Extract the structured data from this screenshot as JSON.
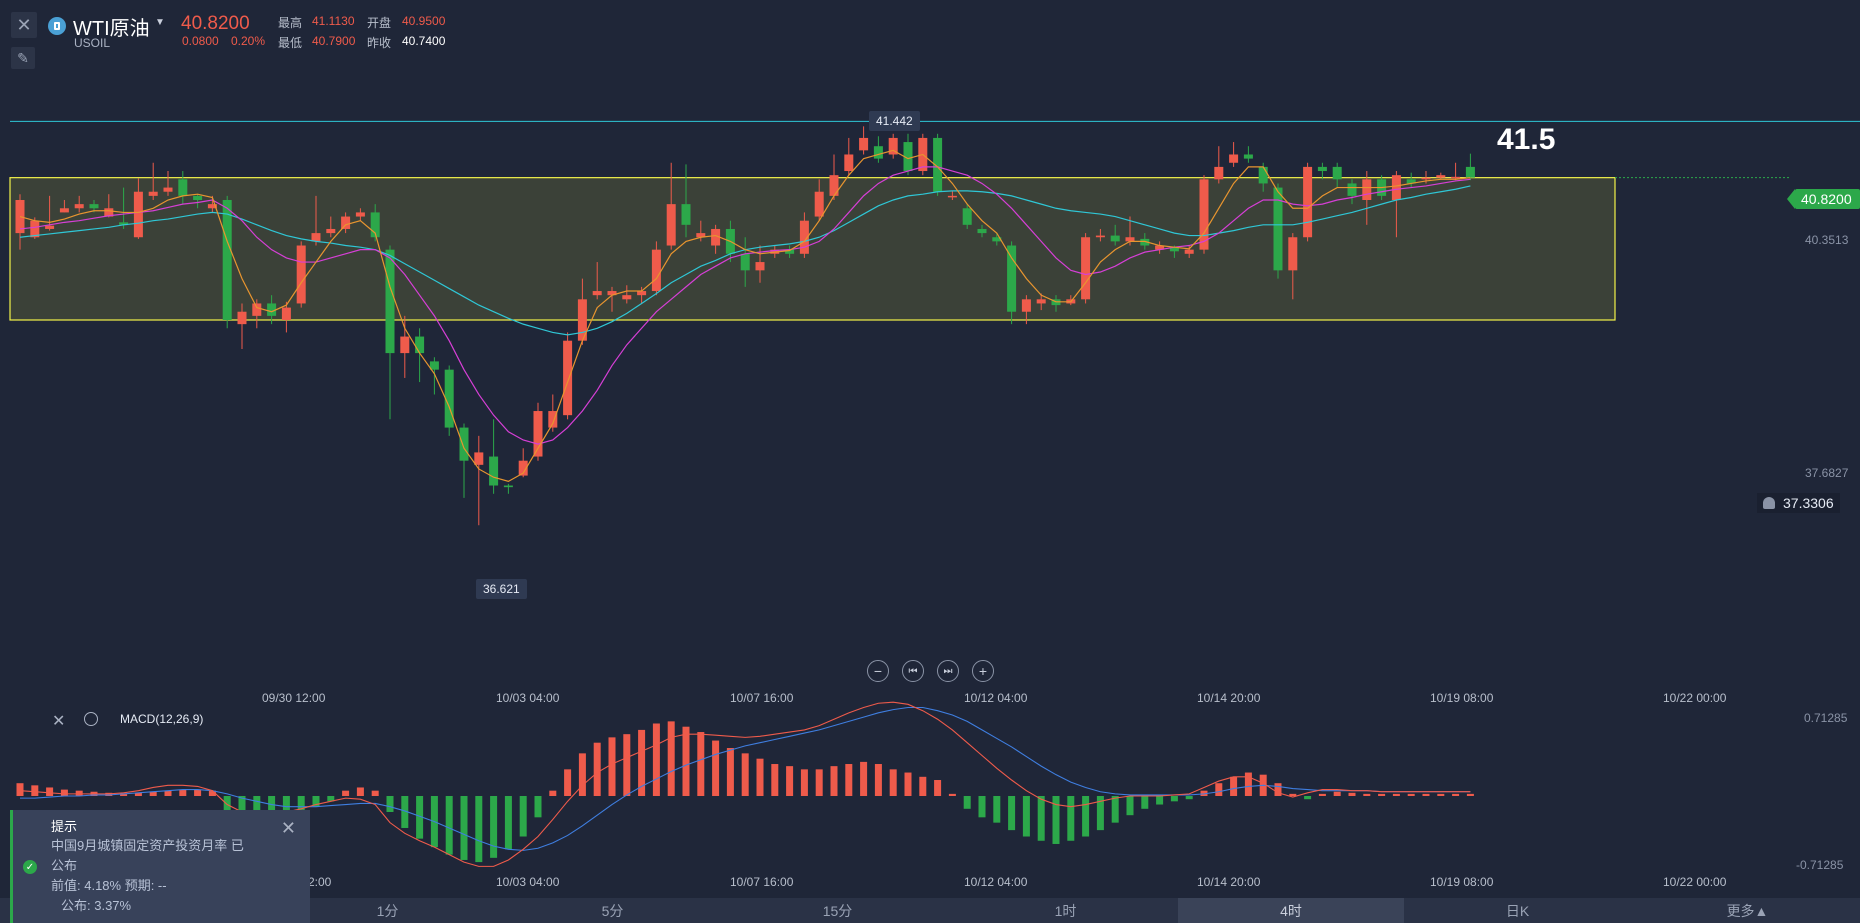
{
  "header": {
    "symbol": "WTI原油",
    "code": "USOIL",
    "price": "40.8200",
    "change": "0.0800",
    "change_pct": "0.20%",
    "high_label": "最高",
    "high": "41.1130",
    "open_label": "开盘",
    "open": "40.9500",
    "low_label": "最低",
    "low": "40.7900",
    "prev_label": "昨收",
    "prev": "40.7400"
  },
  "annotations": {
    "high_callout": "41.442",
    "low_callout": "36.621",
    "level_text": "41.5",
    "price_tag": "40.8200",
    "y_label_mid": "40.3513",
    "y_label_low": "37.6827",
    "alert_price": "37.3306"
  },
  "x_ticks": [
    "09/30 12:00",
    "10/03 04:00",
    "10/07 16:00",
    "10/12 04:00",
    "10/14 20:00",
    "10/19 08:00",
    "10/22 00:00"
  ],
  "x_ticks_bottom": [
    "2:00",
    "10/03 04:00",
    "10/07 16:00",
    "10/12 04:00",
    "10/14 20:00",
    "10/19 08:00",
    "10/22 00:00"
  ],
  "macd": {
    "label": "MACD(12,26,9)",
    "y_top": "0.71285",
    "y_bottom": "-0.71285"
  },
  "timeframes": [
    "1分",
    "5分",
    "15分",
    "1时",
    "4时",
    "日K",
    "更多▲"
  ],
  "active_timeframe": "4时",
  "notice": {
    "title": "提示",
    "line1": "中国9月城镇固定资产投资月率 已",
    "line2": "公布",
    "line3": "前值: 4.18%   预期: --",
    "line4": "公布: 3.37%"
  },
  "colors": {
    "up": "#ef5b4b",
    "down": "#2ca84a",
    "ma_fast": "#e8952f",
    "ma_mid": "#d63fd6",
    "ma_slow": "#2fc7d6",
    "box_border": "#f2f24a",
    "level_line": "#2fc7d6"
  },
  "chart_data": {
    "type": "candlestick",
    "ylim": [
      36.2,
      42.0
    ],
    "candles": [
      {
        "o": 40.15,
        "c": 40.55,
        "h": 40.62,
        "l": 39.95
      },
      {
        "o": 40.1,
        "c": 40.3,
        "h": 40.34,
        "l": 40.08
      },
      {
        "o": 40.2,
        "c": 40.24,
        "h": 40.6,
        "l": 40.18
      },
      {
        "o": 40.4,
        "c": 40.45,
        "h": 40.55,
        "l": 40.4
      },
      {
        "o": 40.45,
        "c": 40.5,
        "h": 40.6,
        "l": 40.4
      },
      {
        "o": 40.5,
        "c": 40.45,
        "h": 40.55,
        "l": 40.4
      },
      {
        "o": 40.35,
        "c": 40.45,
        "h": 40.62,
        "l": 40.34
      },
      {
        "o": 40.28,
        "c": 40.25,
        "h": 40.7,
        "l": 40.2
      },
      {
        "o": 40.1,
        "c": 40.65,
        "h": 40.81,
        "l": 40.08
      },
      {
        "o": 40.6,
        "c": 40.65,
        "h": 41.0,
        "l": 40.55
      },
      {
        "o": 40.65,
        "c": 40.7,
        "h": 40.9,
        "l": 40.6
      },
      {
        "o": 40.8,
        "c": 40.6,
        "h": 40.9,
        "l": 40.5
      },
      {
        "o": 40.6,
        "c": 40.55,
        "h": 40.62,
        "l": 40.45
      },
      {
        "o": 40.45,
        "c": 40.5,
        "h": 40.6,
        "l": 40.4
      },
      {
        "o": 40.55,
        "c": 39.1,
        "h": 40.6,
        "l": 39.0
      },
      {
        "o": 39.05,
        "c": 39.2,
        "h": 39.3,
        "l": 38.75
      },
      {
        "o": 39.15,
        "c": 39.3,
        "h": 39.35,
        "l": 39.0
      },
      {
        "o": 39.3,
        "c": 39.15,
        "h": 39.4,
        "l": 39.05
      },
      {
        "o": 39.1,
        "c": 39.25,
        "h": 39.32,
        "l": 38.95
      },
      {
        "o": 39.3,
        "c": 40.0,
        "h": 40.05,
        "l": 39.25
      },
      {
        "o": 40.05,
        "c": 40.15,
        "h": 40.6,
        "l": 40.0
      },
      {
        "o": 40.15,
        "c": 40.2,
        "h": 40.35,
        "l": 40.1
      },
      {
        "o": 40.2,
        "c": 40.35,
        "h": 40.4,
        "l": 40.15
      },
      {
        "o": 40.35,
        "c": 40.4,
        "h": 40.45,
        "l": 40.3
      },
      {
        "o": 40.4,
        "c": 40.1,
        "h": 40.5,
        "l": 40.05
      },
      {
        "o": 39.95,
        "c": 38.7,
        "h": 40.0,
        "l": 37.9
      },
      {
        "o": 38.7,
        "c": 38.9,
        "h": 39.15,
        "l": 38.4
      },
      {
        "o": 38.9,
        "c": 38.7,
        "h": 39.0,
        "l": 38.35
      },
      {
        "o": 38.6,
        "c": 38.5,
        "h": 38.65,
        "l": 38.2
      },
      {
        "o": 38.5,
        "c": 37.8,
        "h": 38.55,
        "l": 37.7
      },
      {
        "o": 37.8,
        "c": 37.4,
        "h": 37.85,
        "l": 36.95
      },
      {
        "o": 37.35,
        "c": 37.5,
        "h": 37.7,
        "l": 36.62
      },
      {
        "o": 37.45,
        "c": 37.1,
        "h": 37.9,
        "l": 37.0
      },
      {
        "o": 37.1,
        "c": 37.08,
        "h": 37.12,
        "l": 37.0
      },
      {
        "o": 37.22,
        "c": 37.4,
        "h": 37.55,
        "l": 37.2
      },
      {
        "o": 37.45,
        "c": 38.0,
        "h": 38.1,
        "l": 37.4
      },
      {
        "o": 37.8,
        "c": 38.0,
        "h": 38.2,
        "l": 37.75
      },
      {
        "o": 37.95,
        "c": 38.85,
        "h": 38.95,
        "l": 37.9
      },
      {
        "o": 38.85,
        "c": 39.35,
        "h": 39.6,
        "l": 38.8
      },
      {
        "o": 39.4,
        "c": 39.45,
        "h": 39.8,
        "l": 39.35
      },
      {
        "o": 39.4,
        "c": 39.45,
        "h": 39.5,
        "l": 39.2
      },
      {
        "o": 39.35,
        "c": 39.4,
        "h": 39.52,
        "l": 39.3
      },
      {
        "o": 39.4,
        "c": 39.45,
        "h": 39.5,
        "l": 39.3
      },
      {
        "o": 39.45,
        "c": 39.95,
        "h": 40.05,
        "l": 39.4
      },
      {
        "o": 40.0,
        "c": 40.5,
        "h": 41.0,
        "l": 39.95
      },
      {
        "o": 40.5,
        "c": 40.25,
        "h": 40.98,
        "l": 40.1
      },
      {
        "o": 40.1,
        "c": 40.15,
        "h": 40.3,
        "l": 40.05
      },
      {
        "o": 40.0,
        "c": 40.2,
        "h": 40.25,
        "l": 39.9
      },
      {
        "o": 40.2,
        "c": 39.9,
        "h": 40.3,
        "l": 39.8
      },
      {
        "o": 39.9,
        "c": 39.7,
        "h": 40.1,
        "l": 39.5
      },
      {
        "o": 39.7,
        "c": 39.8,
        "h": 40.0,
        "l": 39.55
      },
      {
        "o": 39.9,
        "c": 39.95,
        "h": 40.0,
        "l": 39.85
      },
      {
        "o": 39.95,
        "c": 39.9,
        "h": 40.0,
        "l": 39.85
      },
      {
        "o": 39.9,
        "c": 40.3,
        "h": 40.4,
        "l": 39.85
      },
      {
        "o": 40.35,
        "c": 40.65,
        "h": 40.8,
        "l": 40.3
      },
      {
        "o": 40.6,
        "c": 40.85,
        "h": 41.1,
        "l": 40.55
      },
      {
        "o": 40.9,
        "c": 41.1,
        "h": 41.3,
        "l": 40.85
      },
      {
        "o": 41.15,
        "c": 41.3,
        "h": 41.44,
        "l": 41.1
      },
      {
        "o": 41.2,
        "c": 41.05,
        "h": 41.32,
        "l": 41.0
      },
      {
        "o": 41.1,
        "c": 41.3,
        "h": 41.35,
        "l": 41.05
      },
      {
        "o": 41.25,
        "c": 40.9,
        "h": 41.35,
        "l": 40.85
      },
      {
        "o": 40.9,
        "c": 41.3,
        "h": 41.35,
        "l": 40.85
      },
      {
        "o": 41.3,
        "c": 40.65,
        "h": 41.35,
        "l": 40.6
      },
      {
        "o": 40.6,
        "c": 40.6,
        "h": 40.66,
        "l": 40.55
      },
      {
        "o": 40.45,
        "c": 40.25,
        "h": 40.5,
        "l": 40.2
      },
      {
        "o": 40.2,
        "c": 40.15,
        "h": 40.25,
        "l": 40.1
      },
      {
        "o": 40.1,
        "c": 40.05,
        "h": 40.15,
        "l": 40.0
      },
      {
        "o": 40.0,
        "c": 39.2,
        "h": 40.05,
        "l": 39.05
      },
      {
        "o": 39.2,
        "c": 39.35,
        "h": 39.4,
        "l": 39.05
      },
      {
        "o": 39.3,
        "c": 39.35,
        "h": 39.42,
        "l": 39.22
      },
      {
        "o": 39.35,
        "c": 39.28,
        "h": 39.4,
        "l": 39.2
      },
      {
        "o": 39.3,
        "c": 39.35,
        "h": 39.4,
        "l": 39.28
      },
      {
        "o": 39.35,
        "c": 40.1,
        "h": 40.15,
        "l": 39.3
      },
      {
        "o": 40.1,
        "c": 40.12,
        "h": 40.2,
        "l": 40.05
      },
      {
        "o": 40.12,
        "c": 40.05,
        "h": 40.25,
        "l": 40.0
      },
      {
        "o": 40.05,
        "c": 40.1,
        "h": 40.35,
        "l": 40.0
      },
      {
        "o": 40.08,
        "c": 40.0,
        "h": 40.15,
        "l": 39.95
      },
      {
        "o": 39.95,
        "c": 40.0,
        "h": 40.05,
        "l": 39.9
      },
      {
        "o": 39.98,
        "c": 39.93,
        "h": 40.0,
        "l": 39.85
      },
      {
        "o": 39.9,
        "c": 39.95,
        "h": 40.0,
        "l": 39.85
      },
      {
        "o": 39.95,
        "c": 40.8,
        "h": 40.85,
        "l": 39.9
      },
      {
        "o": 40.8,
        "c": 40.95,
        "h": 41.2,
        "l": 40.75
      },
      {
        "o": 41.0,
        "c": 41.1,
        "h": 41.25,
        "l": 40.95
      },
      {
        "o": 41.1,
        "c": 41.05,
        "h": 41.2,
        "l": 41.0
      },
      {
        "o": 40.95,
        "c": 40.75,
        "h": 41.0,
        "l": 40.65
      },
      {
        "o": 40.7,
        "c": 39.7,
        "h": 40.75,
        "l": 39.6
      },
      {
        "o": 39.7,
        "c": 40.1,
        "h": 40.15,
        "l": 39.35
      },
      {
        "o": 40.1,
        "c": 40.95,
        "h": 41.0,
        "l": 40.05
      },
      {
        "o": 40.95,
        "c": 40.9,
        "h": 41.0,
        "l": 40.8
      },
      {
        "o": 40.95,
        "c": 40.8,
        "h": 41.0,
        "l": 40.7
      },
      {
        "o": 40.75,
        "c": 40.6,
        "h": 40.8,
        "l": 40.5
      },
      {
        "o": 40.55,
        "c": 40.8,
        "h": 40.9,
        "l": 40.25
      },
      {
        "o": 40.8,
        "c": 40.6,
        "h": 40.85,
        "l": 40.55
      },
      {
        "o": 40.55,
        "c": 40.85,
        "h": 40.9,
        "l": 40.1
      },
      {
        "o": 40.8,
        "c": 40.75,
        "h": 40.88,
        "l": 40.7
      },
      {
        "o": 40.8,
        "c": 40.82,
        "h": 40.9,
        "l": 40.75
      },
      {
        "o": 40.82,
        "c": 40.85,
        "h": 40.88,
        "l": 40.8
      },
      {
        "o": 40.82,
        "c": 40.83,
        "h": 41.0,
        "l": 40.79
      },
      {
        "o": 40.95,
        "c": 40.82,
        "h": 41.11,
        "l": 40.79
      }
    ],
    "ma_fast": [
      40.35,
      40.3,
      40.28,
      40.32,
      40.38,
      40.42,
      40.42,
      40.4,
      40.4,
      40.45,
      40.55,
      40.6,
      40.62,
      40.58,
      40.05,
      39.6,
      39.25,
      39.2,
      39.28,
      39.55,
      39.8,
      40.05,
      40.25,
      40.3,
      40.15,
      39.5,
      39.0,
      38.7,
      38.45,
      38.05,
      37.55,
      37.3,
      37.2,
      37.15,
      37.25,
      37.55,
      37.85,
      38.35,
      38.85,
      39.25,
      39.4,
      39.45,
      39.45,
      39.6,
      39.9,
      40.05,
      40.1,
      40.12,
      40.05,
      39.95,
      39.9,
      39.92,
      39.94,
      40.05,
      40.3,
      40.6,
      40.85,
      41.05,
      41.1,
      41.15,
      41.05,
      41.1,
      40.95,
      40.75,
      40.5,
      40.3,
      40.15,
      39.85,
      39.6,
      39.4,
      39.32,
      39.32,
      39.55,
      39.8,
      39.95,
      40.05,
      40.05,
      40.0,
      39.98,
      39.96,
      40.15,
      40.45,
      40.75,
      40.95,
      40.95,
      40.65,
      40.45,
      40.45,
      40.6,
      40.7,
      40.7,
      40.7,
      40.7,
      40.72,
      40.75,
      40.78,
      40.8,
      40.8,
      40.82
    ],
    "ma_mid": [
      40.2,
      40.22,
      40.25,
      40.28,
      40.3,
      40.33,
      40.36,
      40.38,
      40.4,
      40.42,
      40.46,
      40.5,
      40.52,
      40.55,
      40.45,
      40.3,
      40.1,
      39.95,
      39.85,
      39.8,
      39.8,
      39.85,
      39.9,
      39.95,
      39.95,
      39.85,
      39.65,
      39.4,
      39.15,
      38.85,
      38.5,
      38.2,
      37.95,
      37.75,
      37.65,
      37.6,
      37.65,
      37.8,
      38.0,
      38.25,
      38.55,
      38.8,
      39.0,
      39.2,
      39.35,
      39.5,
      39.65,
      39.75,
      39.85,
      39.9,
      39.92,
      39.94,
      39.95,
      39.98,
      40.05,
      40.2,
      40.4,
      40.6,
      40.75,
      40.85,
      40.9,
      40.95,
      40.95,
      40.9,
      40.85,
      40.75,
      40.62,
      40.45,
      40.25,
      40.05,
      39.85,
      39.7,
      39.65,
      39.68,
      39.75,
      39.85,
      39.92,
      39.95,
      39.98,
      40.0,
      40.05,
      40.15,
      40.3,
      40.45,
      40.55,
      40.55,
      40.5,
      40.48,
      40.5,
      40.55,
      40.58,
      40.62,
      40.65,
      40.68,
      40.7,
      40.72,
      40.75,
      40.78,
      40.8
    ],
    "ma_slow": [
      40.1,
      40.12,
      40.14,
      40.16,
      40.18,
      40.2,
      40.22,
      40.25,
      40.27,
      40.3,
      40.32,
      40.35,
      40.38,
      40.4,
      40.38,
      40.32,
      40.25,
      40.18,
      40.12,
      40.08,
      40.05,
      40.03,
      40.0,
      39.98,
      39.95,
      39.88,
      39.78,
      39.68,
      39.58,
      39.48,
      39.38,
      39.28,
      39.2,
      39.12,
      39.05,
      39.0,
      38.95,
      38.92,
      38.95,
      39.0,
      39.08,
      39.18,
      39.3,
      39.42,
      39.55,
      39.65,
      39.75,
      39.82,
      39.9,
      39.95,
      39.98,
      40.0,
      40.02,
      40.05,
      40.1,
      40.18,
      40.28,
      40.38,
      40.48,
      40.55,
      40.6,
      40.62,
      40.65,
      40.66,
      40.66,
      40.65,
      40.63,
      40.6,
      40.55,
      40.5,
      40.45,
      40.42,
      40.4,
      40.38,
      40.35,
      40.3,
      40.25,
      40.2,
      40.15,
      40.12,
      40.12,
      40.15,
      40.18,
      40.22,
      40.25,
      40.25,
      40.25,
      40.28,
      40.32,
      40.36,
      40.4,
      40.45,
      40.5,
      40.55,
      40.58,
      40.62,
      40.65,
      40.68,
      40.72
    ],
    "box": {
      "top": 40.82,
      "bottom": 39.1
    },
    "level": 41.5,
    "macd_hist": [
      0.12,
      0.1,
      0.08,
      0.06,
      0.05,
      0.04,
      0.03,
      0.02,
      0.03,
      0.04,
      0.05,
      0.06,
      0.06,
      0.05,
      -0.15,
      -0.2,
      -0.22,
      -0.22,
      -0.2,
      -0.18,
      -0.1,
      -0.05,
      0.05,
      0.08,
      0.05,
      -0.15,
      -0.3,
      -0.4,
      -0.48,
      -0.55,
      -0.6,
      -0.62,
      -0.58,
      -0.5,
      -0.38,
      -0.2,
      0.05,
      0.25,
      0.4,
      0.5,
      0.55,
      0.58,
      0.62,
      0.68,
      0.7,
      0.65,
      0.6,
      0.52,
      0.45,
      0.4,
      0.35,
      0.3,
      0.28,
      0.25,
      0.25,
      0.28,
      0.3,
      0.32,
      0.3,
      0.25,
      0.22,
      0.18,
      0.15,
      0.02,
      -0.12,
      -0.2,
      -0.25,
      -0.32,
      -0.38,
      -0.42,
      -0.45,
      -0.42,
      -0.38,
      -0.32,
      -0.25,
      -0.18,
      -0.12,
      -0.08,
      -0.05,
      -0.03,
      0.05,
      0.12,
      0.18,
      0.22,
      0.2,
      0.12,
      0.02,
      -0.03,
      0.02,
      0.04,
      0.03,
      0.02,
      0.02,
      0.02,
      0.02,
      0.02,
      0.02,
      0.02,
      0.02
    ],
    "macd_dif": [
      0.05,
      0.04,
      0.03,
      0.02,
      0.02,
      0.02,
      0.02,
      0.03,
      0.05,
      0.08,
      0.1,
      0.1,
      0.09,
      0.05,
      -0.08,
      -0.15,
      -0.18,
      -0.18,
      -0.15,
      -0.12,
      -0.08,
      -0.05,
      -0.02,
      -0.03,
      -0.08,
      -0.25,
      -0.35,
      -0.42,
      -0.48,
      -0.55,
      -0.62,
      -0.66,
      -0.66,
      -0.6,
      -0.5,
      -0.38,
      -0.22,
      -0.05,
      0.1,
      0.22,
      0.3,
      0.36,
      0.42,
      0.48,
      0.55,
      0.58,
      0.58,
      0.57,
      0.56,
      0.55,
      0.56,
      0.58,
      0.6,
      0.62,
      0.66,
      0.72,
      0.78,
      0.83,
      0.87,
      0.88,
      0.86,
      0.8,
      0.72,
      0.62,
      0.5,
      0.38,
      0.26,
      0.15,
      0.05,
      -0.03,
      -0.08,
      -0.1,
      -0.08,
      -0.05,
      -0.02,
      0.0,
      0.0,
      0.0,
      0.01,
      0.02,
      0.08,
      0.14,
      0.18,
      0.18,
      0.12,
      0.03,
      -0.01,
      0.03,
      0.06,
      0.06,
      0.05,
      0.05,
      0.04,
      0.04,
      0.04,
      0.04,
      0.04,
      0.04,
      0.04
    ],
    "macd_dea": [
      -0.02,
      -0.02,
      -0.01,
      0.0,
      0.0,
      0.01,
      0.01,
      0.02,
      0.03,
      0.04,
      0.05,
      0.06,
      0.06,
      0.05,
      0.02,
      -0.02,
      -0.05,
      -0.08,
      -0.1,
      -0.1,
      -0.1,
      -0.09,
      -0.08,
      -0.07,
      -0.07,
      -0.1,
      -0.14,
      -0.19,
      -0.24,
      -0.3,
      -0.36,
      -0.42,
      -0.47,
      -0.5,
      -0.51,
      -0.49,
      -0.44,
      -0.37,
      -0.28,
      -0.18,
      -0.08,
      0.01,
      0.09,
      0.16,
      0.23,
      0.29,
      0.34,
      0.39,
      0.43,
      0.47,
      0.5,
      0.53,
      0.56,
      0.59,
      0.62,
      0.66,
      0.7,
      0.74,
      0.78,
      0.81,
      0.83,
      0.83,
      0.8,
      0.76,
      0.7,
      0.62,
      0.54,
      0.46,
      0.37,
      0.28,
      0.2,
      0.13,
      0.08,
      0.04,
      0.02,
      0.01,
      0.01,
      0.01,
      0.01,
      0.01,
      0.02,
      0.04,
      0.07,
      0.09,
      0.1,
      0.09,
      0.07,
      0.06,
      0.05,
      0.05,
      0.05,
      0.05,
      0.04,
      0.04,
      0.04,
      0.04,
      0.04,
      0.04,
      0.04
    ],
    "macd_ylim": [
      -0.71285,
      0.71285
    ]
  }
}
